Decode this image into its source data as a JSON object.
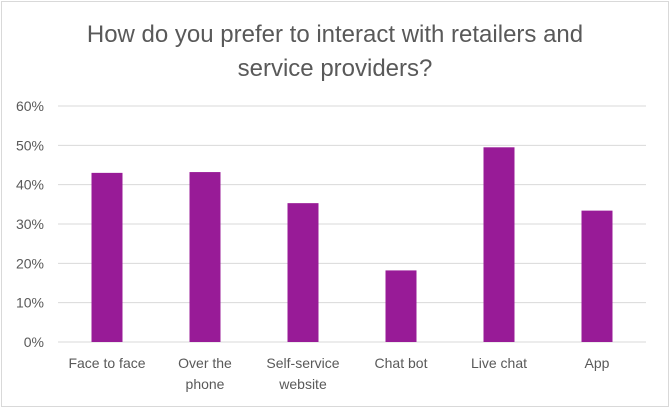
{
  "chart_data": {
    "type": "bar",
    "title": "How do you prefer to interact with retailers and\nservice providers?",
    "categories": [
      "Face to face",
      "Over the\nphone",
      "Self-service\nwebsite",
      "Chat bot",
      "Live chat",
      "App"
    ],
    "series": [
      {
        "values": [
          43,
          43.2,
          35.3,
          18.2,
          49.5,
          33.4
        ]
      }
    ],
    "y_tick_labels": [
      "0%",
      "10%",
      "20%",
      "30%",
      "40%",
      "50%",
      "60%"
    ],
    "ylim": [
      0,
      60
    ],
    "y_unit": "%",
    "grid": true,
    "legend": "none",
    "colors": {
      "bar": "#981b97",
      "grid": "#d9d9d9",
      "text": "#595959"
    }
  }
}
